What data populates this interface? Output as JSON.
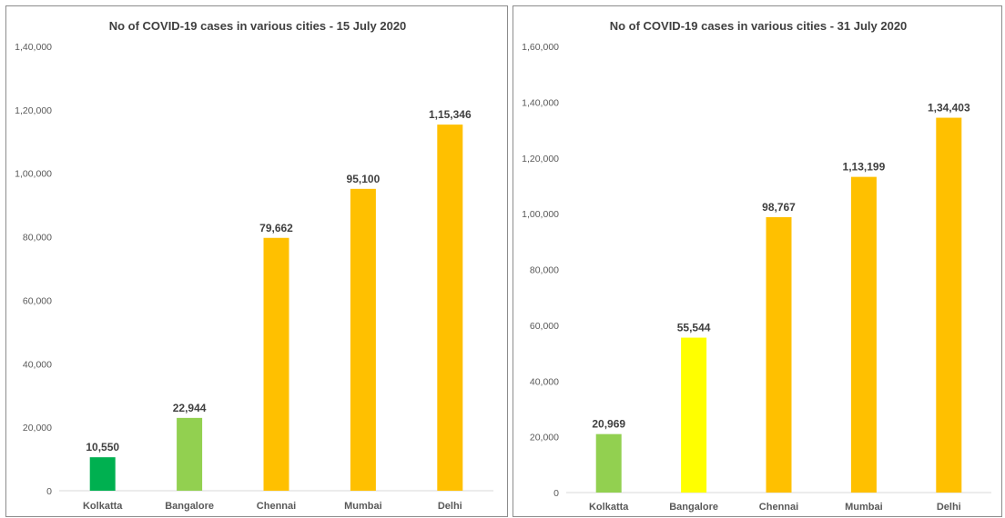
{
  "chart_data": [
    {
      "type": "bar",
      "title": "No of COVID-19 cases in various cities - 15 July 2020",
      "categories": [
        "Kolkatta",
        "Bangalore",
        "Chennai",
        "Mumbai",
        "Delhi"
      ],
      "values": [
        10550,
        22944,
        79662,
        95100,
        115346
      ],
      "data_labels": [
        "10,550",
        "22,944",
        "79,662",
        "95,100",
        "1,15,346"
      ],
      "bar_colors": [
        "#00b050",
        "#92d050",
        "#ffc000",
        "#ffc000",
        "#ffc000"
      ],
      "ylim": [
        0,
        140000
      ],
      "yticks": [
        0,
        20000,
        40000,
        60000,
        80000,
        100000,
        120000,
        140000
      ],
      "ytick_labels": [
        "0",
        "20,000",
        "40,000",
        "60,000",
        "80,000",
        "1,00,000",
        "1,20,000",
        "1,40,000"
      ],
      "xlabel": "",
      "ylabel": "",
      "grid": false,
      "legend": "none"
    },
    {
      "type": "bar",
      "title": "No of COVID-19 cases in various cities - 31 July 2020",
      "categories": [
        "Kolkatta",
        "Bangalore",
        "Chennai",
        "Mumbai",
        "Delhi"
      ],
      "values": [
        20969,
        55544,
        98767,
        113199,
        134403
      ],
      "data_labels": [
        "20,969",
        "55,544",
        "98,767",
        "1,13,199",
        "1,34,403"
      ],
      "bar_colors": [
        "#92d050",
        "#ffff00",
        "#ffc000",
        "#ffc000",
        "#ffc000"
      ],
      "ylim": [
        0,
        160000
      ],
      "yticks": [
        0,
        20000,
        40000,
        60000,
        80000,
        100000,
        120000,
        140000,
        160000
      ],
      "ytick_labels": [
        "0",
        "20,000",
        "40,000",
        "60,000",
        "80,000",
        "1,00,000",
        "1,20,000",
        "1,40,000",
        "1,60,000"
      ],
      "xlabel": "",
      "ylabel": "",
      "grid": false,
      "legend": "none"
    }
  ]
}
